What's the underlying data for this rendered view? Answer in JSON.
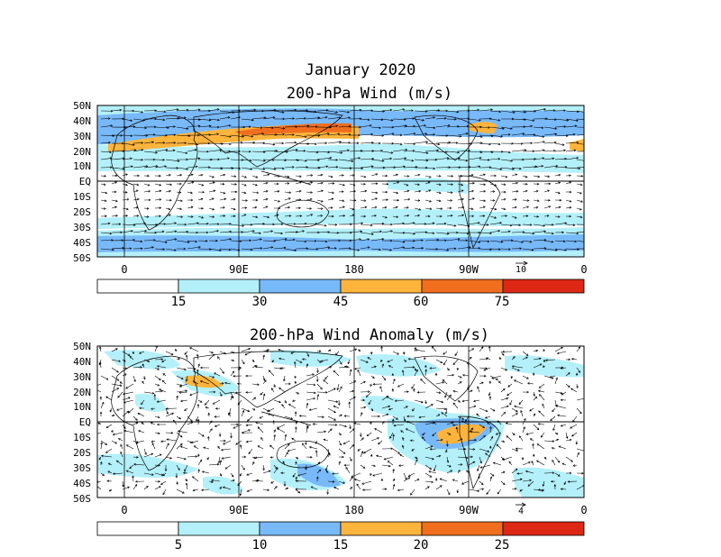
{
  "header": {
    "title": "January 2020"
  },
  "panels": [
    {
      "title": "200-hPa Wind (m/s)",
      "lat_labels": [
        "50N",
        "40N",
        "30N",
        "20N",
        "10N",
        "EQ",
        "10S",
        "20S",
        "30S",
        "40S",
        "50S"
      ],
      "lon_labels": [
        "0",
        "90E",
        "180",
        "90W",
        "0"
      ],
      "ref_vector_label": "10",
      "colorbar": {
        "labels": [
          "15",
          "30",
          "45",
          "60",
          "75"
        ],
        "colors": [
          "#ffffff",
          "#b4f0fa",
          "#78b9fa",
          "#ffb43c",
          "#f06e1e",
          "#dc2814"
        ]
      }
    },
    {
      "title": "200-hPa Wind Anomaly (m/s)",
      "lat_labels": [
        "50N",
        "40N",
        "30N",
        "20N",
        "10N",
        "EQ",
        "10S",
        "20S",
        "30S",
        "40S",
        "50S"
      ],
      "lon_labels": [
        "0",
        "90E",
        "180",
        "90W",
        "0"
      ],
      "ref_vector_label": "4",
      "colorbar": {
        "labels": [
          "5",
          "10",
          "15",
          "20",
          "25"
        ],
        "colors": [
          "#ffffff",
          "#b4f0fa",
          "#78b9fa",
          "#ffb43c",
          "#f06e1e",
          "#dc2814"
        ]
      }
    }
  ]
}
